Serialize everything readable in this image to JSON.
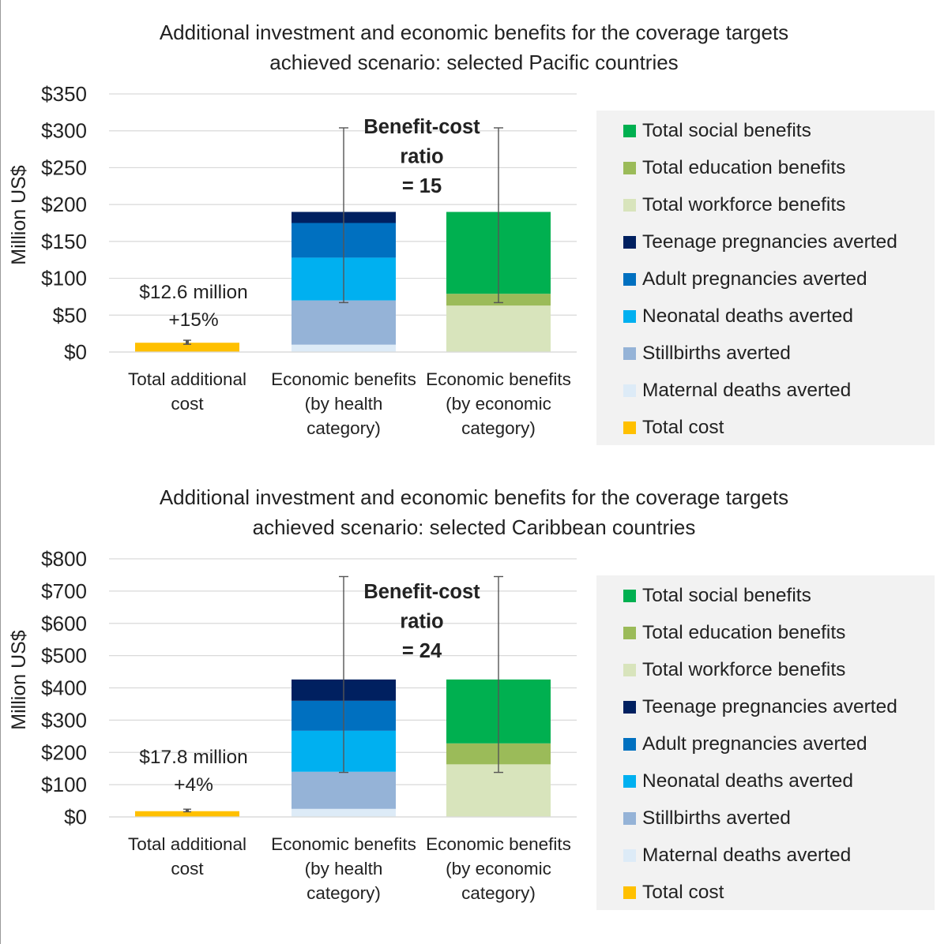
{
  "chart_data": [
    {
      "type": "bar",
      "stacked": true,
      "title_lines": [
        "Additional investment and economic benefits for the coverage targets",
        "achieved scenario: selected Pacific countries"
      ],
      "ylabel": "Million US$",
      "ylim": [
        0,
        350
      ],
      "yticks": [
        0,
        50,
        100,
        150,
        200,
        250,
        300,
        350
      ],
      "ytick_labels": [
        "$0",
        "$50",
        "$100",
        "$150",
        "$200",
        "$250",
        "$300",
        "$350"
      ],
      "grid": true,
      "legend_position": "right",
      "categories": [
        [
          "Total additional",
          "cost"
        ],
        [
          "Economic benefits",
          "(by health",
          "category)"
        ],
        [
          "Economic benefits",
          "(by economic",
          "category)"
        ]
      ],
      "series": [
        {
          "name": "Total cost",
          "color": "#ffc000",
          "values": [
            12.6,
            0,
            0
          ]
        },
        {
          "name": "Maternal deaths averted",
          "color": "#ddebf7",
          "values": [
            0,
            10,
            0
          ]
        },
        {
          "name": "Stillbirths averted",
          "color": "#95b3d7",
          "values": [
            0,
            60,
            0
          ]
        },
        {
          "name": "Neonatal deaths averted",
          "color": "#00b0f0",
          "values": [
            0,
            58,
            0
          ]
        },
        {
          "name": "Adult pregnancies averted",
          "color": "#0070c0",
          "values": [
            0,
            47,
            0
          ]
        },
        {
          "name": "Teenage pregnancies averted",
          "color": "#002060",
          "values": [
            0,
            15,
            0
          ]
        },
        {
          "name": "Total workforce benefits",
          "color": "#d8e4bc",
          "values": [
            0,
            0,
            63
          ]
        },
        {
          "name": "Total education benefits",
          "color": "#9bbb59",
          "values": [
            0,
            0,
            16
          ]
        },
        {
          "name": "Total social benefits",
          "color": "#00b050",
          "values": [
            0,
            0,
            111
          ]
        }
      ],
      "error_bars": [
        {
          "low": 10.5,
          "high": 16
        },
        {
          "low": 67,
          "high": 304
        },
        {
          "low": 67,
          "high": 304
        }
      ],
      "cost_annotation": [
        "$12.6 million",
        "+15%"
      ],
      "ratio_annotation": [
        "Benefit-cost",
        "ratio",
        "= 15"
      ],
      "legend_order": [
        "Total social benefits",
        "Total education benefits",
        "Total workforce benefits",
        "Teenage pregnancies averted",
        "Adult pregnancies averted",
        "Neonatal deaths averted",
        "Stillbirths averted",
        "Maternal deaths averted",
        "Total cost"
      ]
    },
    {
      "type": "bar",
      "stacked": true,
      "title_lines": [
        "Additional investment and economic benefits for the coverage targets",
        "achieved scenario: selected Caribbean countries"
      ],
      "ylabel": "Million US$",
      "ylim": [
        0,
        800
      ],
      "yticks": [
        0,
        100,
        200,
        300,
        400,
        500,
        600,
        700,
        800
      ],
      "ytick_labels": [
        "$0",
        "$100",
        "$200",
        "$300",
        "$400",
        "$500",
        "$600",
        "$700",
        "$800"
      ],
      "grid": true,
      "legend_position": "right",
      "categories": [
        [
          "Total additional",
          "cost"
        ],
        [
          "Economic benefits",
          "(by health",
          "category)"
        ],
        [
          "Economic benefits",
          "(by economic",
          "category)"
        ]
      ],
      "series": [
        {
          "name": "Total cost",
          "color": "#ffc000",
          "values": [
            17.8,
            0,
            0
          ]
        },
        {
          "name": "Maternal deaths averted",
          "color": "#ddebf7",
          "values": [
            0,
            25,
            0
          ]
        },
        {
          "name": "Stillbirths averted",
          "color": "#95b3d7",
          "values": [
            0,
            115,
            0
          ]
        },
        {
          "name": "Neonatal deaths averted",
          "color": "#00b0f0",
          "values": [
            0,
            127,
            0
          ]
        },
        {
          "name": "Adult pregnancies averted",
          "color": "#0070c0",
          "values": [
            0,
            93,
            0
          ]
        },
        {
          "name": "Teenage pregnancies averted",
          "color": "#002060",
          "values": [
            0,
            66,
            0
          ]
        },
        {
          "name": "Total workforce benefits",
          "color": "#d8e4bc",
          "values": [
            0,
            0,
            163
          ]
        },
        {
          "name": "Total education benefits",
          "color": "#9bbb59",
          "values": [
            0,
            0,
            65
          ]
        },
        {
          "name": "Total social benefits",
          "color": "#00b050",
          "values": [
            0,
            0,
            198
          ]
        }
      ],
      "error_bars": [
        {
          "low": 16,
          "high": 24
        },
        {
          "low": 138,
          "high": 745
        },
        {
          "low": 138,
          "high": 745
        }
      ],
      "cost_annotation": [
        "$17.8 million",
        "+4%"
      ],
      "ratio_annotation": [
        "Benefit-cost",
        "ratio",
        "= 24"
      ],
      "legend_order": [
        "Total social benefits",
        "Total education benefits",
        "Total workforce benefits",
        "Teenage pregnancies averted",
        "Adult pregnancies averted",
        "Neonatal deaths averted",
        "Stillbirths averted",
        "Maternal deaths averted",
        "Total cost"
      ]
    }
  ]
}
